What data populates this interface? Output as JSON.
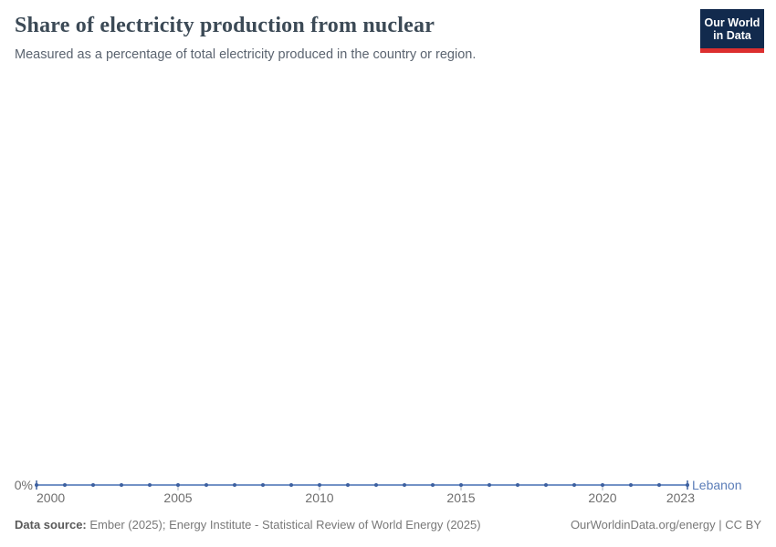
{
  "header": {
    "title": "Share of electricity production from nuclear",
    "subtitle": "Measured as a percentage of total electricity produced in the country or region.",
    "logo": {
      "line1": "Our World",
      "line2": "in Data"
    }
  },
  "footer": {
    "source_label": "Data source:",
    "source_text": " Ember (2025); Energy Institute - Statistical Review of World Energy (2025)",
    "credit": "OurWorldinData.org/energy | CC BY"
  },
  "colors": {
    "logo_navy": "#122a4d",
    "logo_red": "#dc2f2f",
    "title_text": "#3c4a56",
    "axis_text": "#6e6e6e",
    "footer_text": "#787878"
  },
  "chart_data": {
    "type": "line",
    "title": "Share of electricity production from nuclear",
    "subtitle": "Measured as a percentage of total electricity produced in the country or region.",
    "xlabel": "",
    "ylabel": "",
    "xlim": [
      2000,
      2023
    ],
    "grid": false,
    "legend_position": "end-of-line entity label",
    "x": [
      2000,
      2001,
      2002,
      2003,
      2004,
      2005,
      2006,
      2007,
      2008,
      2009,
      2010,
      2011,
      2012,
      2013,
      2014,
      2015,
      2016,
      2017,
      2018,
      2019,
      2020,
      2021,
      2022,
      2023
    ],
    "series": [
      {
        "name": "Lebanon",
        "values": [
          0,
          0,
          0,
          0,
          0,
          0,
          0,
          0,
          0,
          0,
          0,
          0,
          0,
          0,
          0,
          0,
          0,
          0,
          0,
          0,
          0,
          0,
          0,
          0
        ],
        "unit": "%",
        "color": "#7493c6",
        "marker_color": "#3d60a0"
      }
    ],
    "entity_label_color": "#5b7db8",
    "x_ticks": [
      2000,
      2005,
      2010,
      2015,
      2020,
      2023
    ],
    "y_axis": {
      "tick_label": "0%",
      "value": 0
    }
  }
}
